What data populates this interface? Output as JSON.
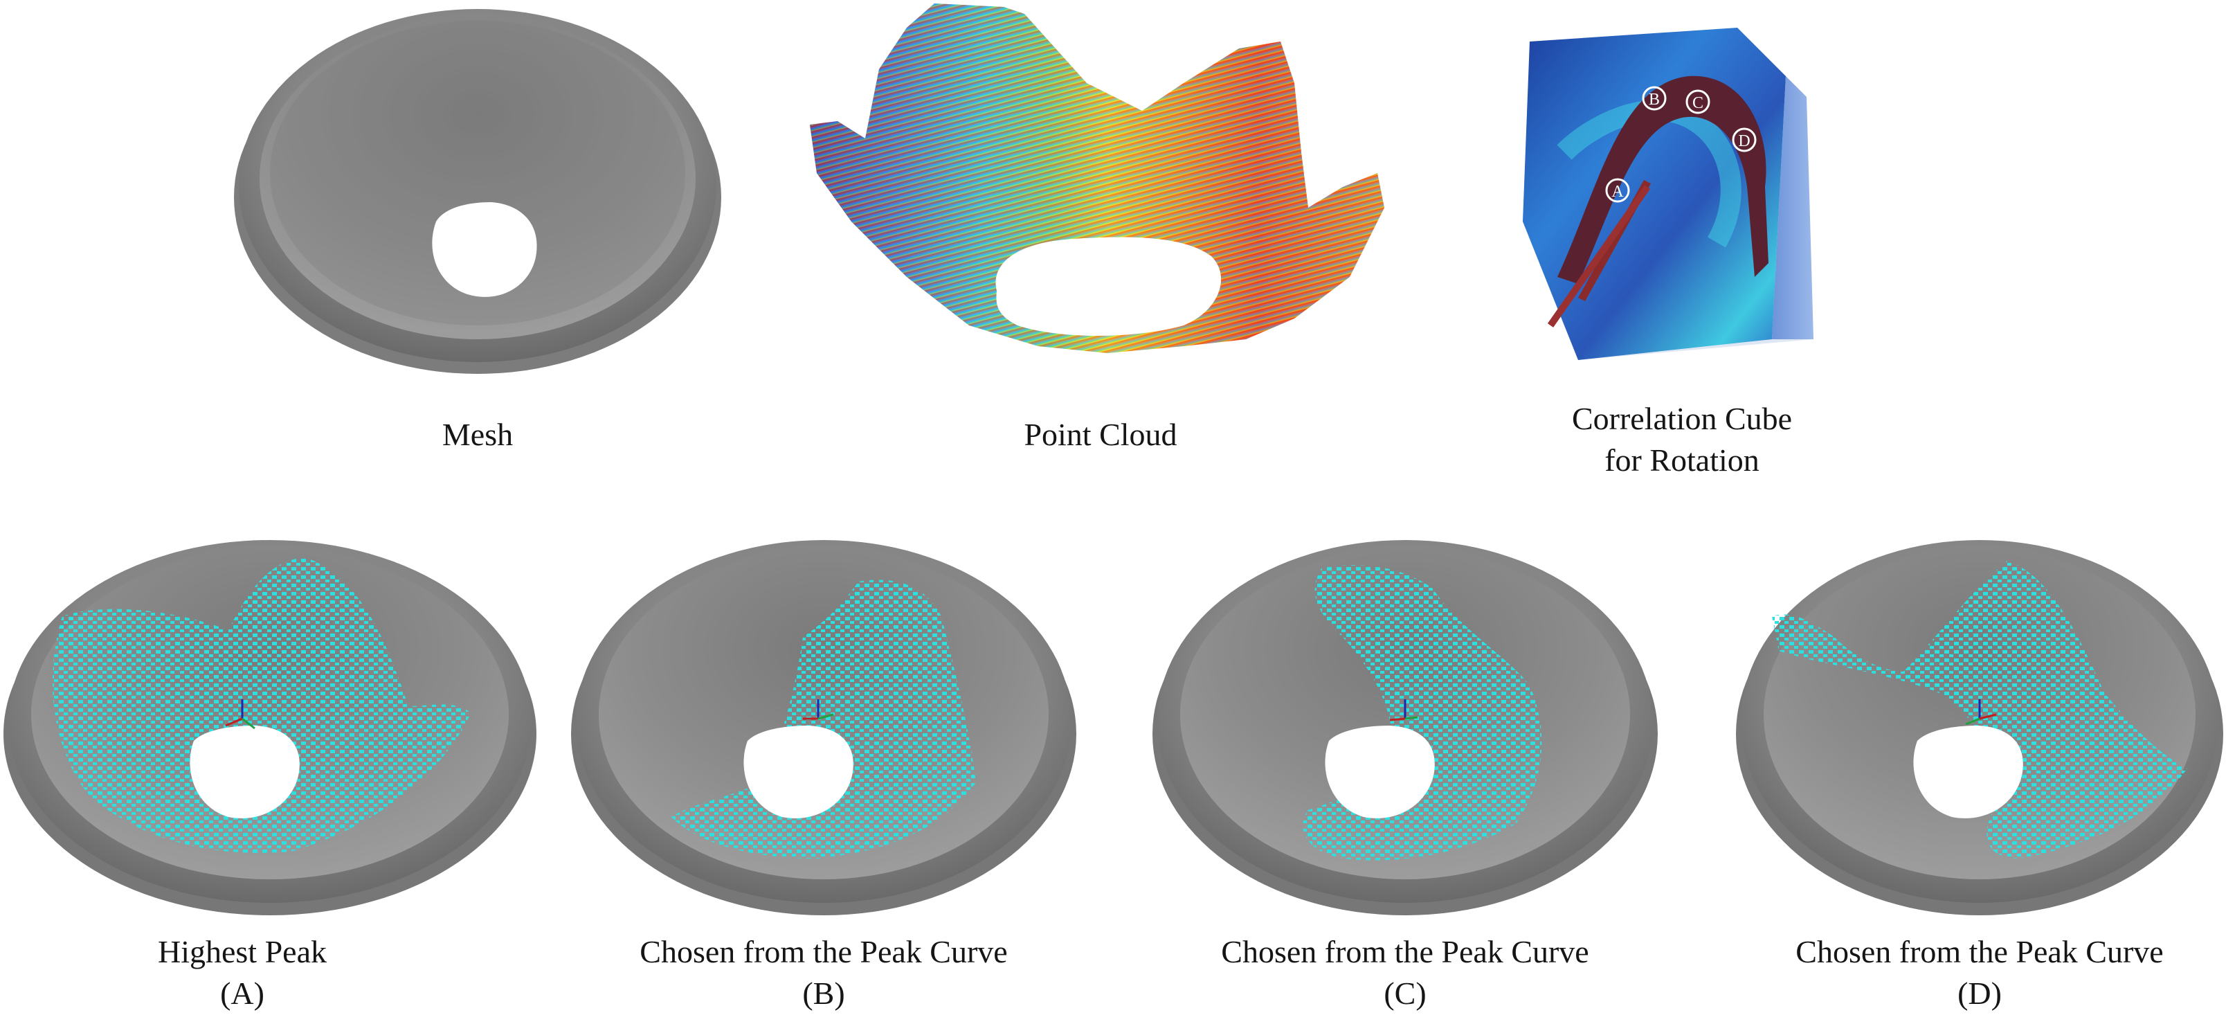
{
  "top": {
    "mesh_caption": "Mesh",
    "cloud_caption": "Point Cloud",
    "cube_caption_line1": "Correlation Cube",
    "cube_caption_line2": "for Rotation",
    "cube_markers": [
      "A",
      "B",
      "C",
      "D"
    ]
  },
  "bottom": [
    {
      "line1": "Highest Peak",
      "line2": "(A)"
    },
    {
      "line1": "Chosen from the Peak Curve",
      "line2": "(B)"
    },
    {
      "line1": "Chosen from the Peak Curve",
      "line2": "(C)"
    },
    {
      "line1": "Chosen from the Peak Curve",
      "line2": "(D)"
    }
  ],
  "colors": {
    "mesh": "#8a8a8a",
    "mesh_dark": "#6d6d6d",
    "points": "#2de0e0",
    "cube_blue": "#2a5fc4",
    "cube_cyan": "#3fd4e6",
    "peak_curve": "#7a2a2a"
  }
}
